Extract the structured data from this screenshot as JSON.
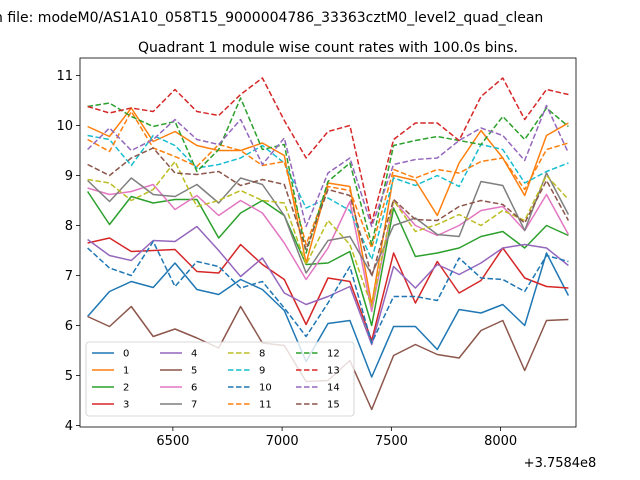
{
  "header": {
    "suptitle": "n file: modeM0/AS1A10_058T15_9000004786_33363cztM0_level2_quad_clean",
    "title": "Quadrant 1 module wise count rates with 100.0s bins."
  },
  "axis_offset_text": "+3.7584e8",
  "chart_data": {
    "type": "line",
    "title": "Quadrant 1 module wise count rates with 100.0s bins.",
    "xlabel": "",
    "ylabel": "",
    "x_offset": 375840000,
    "xlim": [
      6075,
      8345
    ],
    "ylim": [
      3.97,
      11.35
    ],
    "x_ticks": [
      6500,
      7000,
      7500,
      8000
    ],
    "y_ticks": [
      4,
      5,
      6,
      7,
      8,
      9,
      10,
      11
    ],
    "grid": false,
    "legend_position": "lower-left",
    "legend_columns": 4,
    "x": [
      6110,
      6210,
      6310,
      6410,
      6510,
      6610,
      6710,
      6810,
      6910,
      7010,
      7110,
      7210,
      7310,
      7410,
      7510,
      7610,
      7710,
      7810,
      7910,
      8010,
      8110,
      8210,
      8310
    ],
    "series": [
      {
        "name": "0",
        "color": "#1f77b4",
        "dash": "solid",
        "values": [
          6.18,
          6.68,
          6.88,
          6.76,
          7.25,
          6.72,
          6.62,
          6.92,
          6.72,
          6.3,
          5.28,
          6.04,
          6.1,
          4.97,
          5.98,
          5.98,
          5.52,
          6.32,
          6.25,
          6.42,
          6.0,
          7.45,
          6.6
        ]
      },
      {
        "name": "1",
        "color": "#ff7f0e",
        "dash": "solid",
        "values": [
          9.98,
          9.78,
          10.35,
          9.68,
          9.88,
          9.6,
          9.5,
          9.5,
          9.65,
          9.4,
          7.25,
          8.85,
          8.78,
          6.42,
          9.0,
          8.9,
          8.2,
          9.25,
          9.9,
          9.35,
          8.6,
          9.8,
          10.05
        ]
      },
      {
        "name": "2",
        "color": "#2ca02c",
        "dash": "solid",
        "values": [
          8.68,
          8.02,
          8.58,
          8.45,
          8.52,
          8.52,
          7.75,
          8.25,
          8.5,
          8.2,
          7.22,
          7.25,
          7.48,
          6.0,
          8.35,
          7.38,
          7.45,
          7.55,
          7.78,
          7.88,
          7.55,
          8.0,
          7.8
        ]
      },
      {
        "name": "3",
        "color": "#d62728",
        "dash": "solid",
        "values": [
          7.65,
          7.75,
          7.48,
          7.5,
          7.52,
          7.08,
          7.05,
          7.62,
          7.22,
          6.92,
          6.02,
          6.95,
          6.88,
          5.7,
          7.45,
          6.45,
          7.28,
          6.65,
          6.9,
          7.55,
          6.95,
          6.78,
          6.75
        ]
      },
      {
        "name": "4",
        "color": "#9467bd",
        "dash": "solid",
        "values": [
          7.72,
          7.4,
          7.3,
          7.7,
          7.68,
          7.98,
          7.5,
          6.98,
          7.35,
          6.65,
          6.42,
          6.58,
          6.78,
          5.62,
          7.18,
          6.75,
          7.22,
          7.02,
          7.25,
          7.55,
          7.62,
          7.55,
          7.2
        ]
      },
      {
        "name": "5",
        "color": "#8c564b",
        "dash": "solid",
        "values": [
          6.18,
          5.98,
          6.38,
          5.78,
          5.93,
          5.75,
          5.55,
          6.38,
          5.65,
          5.6,
          4.88,
          4.9,
          5.3,
          4.32,
          5.4,
          5.62,
          5.42,
          5.35,
          5.9,
          6.1,
          5.1,
          6.1,
          6.12
        ]
      },
      {
        "name": "6",
        "color": "#e377c2",
        "dash": "solid",
        "values": [
          8.75,
          8.62,
          8.68,
          8.82,
          8.32,
          8.6,
          8.2,
          8.5,
          8.25,
          7.65,
          6.92,
          7.55,
          8.48,
          6.28,
          8.5,
          8.0,
          7.8,
          8.0,
          8.3,
          8.38,
          7.9,
          8.62,
          7.82
        ]
      },
      {
        "name": "7",
        "color": "#7f7f7f",
        "dash": "solid",
        "values": [
          8.9,
          8.48,
          8.95,
          8.62,
          8.58,
          8.82,
          8.45,
          8.95,
          8.82,
          8.2,
          7.05,
          7.7,
          7.78,
          7.02,
          8.0,
          8.15,
          7.82,
          7.78,
          8.88,
          8.8,
          7.9,
          9.05,
          8.22
        ]
      },
      {
        "name": "8",
        "color": "#bcbd22",
        "dash": "dashed",
        "values": [
          8.92,
          8.85,
          8.5,
          8.72,
          9.28,
          8.38,
          8.5,
          8.7,
          8.5,
          8.45,
          7.22,
          8.1,
          7.62,
          6.38,
          8.5,
          7.88,
          8.02,
          8.22,
          8.0,
          8.3,
          8.1,
          9.0,
          8.52
        ]
      },
      {
        "name": "9",
        "color": "#17becf",
        "dash": "dashed",
        "values": [
          9.8,
          9.72,
          9.2,
          9.8,
          9.6,
          9.15,
          9.22,
          9.35,
          9.6,
          9.25,
          8.35,
          8.55,
          8.3,
          7.32,
          8.95,
          8.8,
          9.0,
          8.78,
          9.62,
          9.52,
          8.85,
          9.08,
          9.25
        ]
      },
      {
        "name": "10",
        "color": "#1f77b4",
        "dash": "dashed",
        "values": [
          7.55,
          7.15,
          7.0,
          7.68,
          6.78,
          7.28,
          7.18,
          6.75,
          6.88,
          6.35,
          5.78,
          6.45,
          7.18,
          5.65,
          6.58,
          6.58,
          6.5,
          7.35,
          6.95,
          6.92,
          6.68,
          7.4,
          7.28
        ]
      },
      {
        "name": "11",
        "color": "#ff7f0e",
        "dash": "dashed",
        "values": [
          9.72,
          9.48,
          10.28,
          9.55,
          9.38,
          9.18,
          9.62,
          9.5,
          9.2,
          9.28,
          7.62,
          8.78,
          8.7,
          7.55,
          9.12,
          8.95,
          9.12,
          9.05,
          9.28,
          9.35,
          8.72,
          9.52,
          9.65
        ]
      },
      {
        "name": "12",
        "color": "#2ca02c",
        "dash": "dashed",
        "values": [
          10.38,
          10.45,
          10.18,
          9.98,
          10.08,
          9.08,
          9.52,
          10.55,
          9.52,
          9.62,
          7.45,
          8.88,
          9.25,
          7.62,
          9.6,
          9.7,
          9.78,
          9.7,
          9.62,
          10.18,
          9.72,
          10.35,
          9.98
        ]
      },
      {
        "name": "13",
        "color": "#d62728",
        "dash": "dashed",
        "values": [
          10.38,
          10.25,
          10.35,
          10.28,
          10.72,
          10.28,
          10.2,
          10.62,
          10.95,
          10.1,
          9.35,
          9.88,
          10.0,
          8.05,
          9.72,
          10.05,
          10.05,
          9.7,
          10.58,
          10.95,
          10.12,
          10.72,
          10.62
        ]
      },
      {
        "name": "14",
        "color": "#9467bd",
        "dash": "dashed",
        "values": [
          9.52,
          9.95,
          9.5,
          9.72,
          10.12,
          9.72,
          9.62,
          10.12,
          9.22,
          9.75,
          7.98,
          9.05,
          9.35,
          7.98,
          9.22,
          9.32,
          9.35,
          9.7,
          9.95,
          9.8,
          9.3,
          10.4,
          9.45
        ]
      },
      {
        "name": "15",
        "color": "#8c564b",
        "dash": "dashed",
        "values": [
          9.22,
          9.0,
          9.35,
          9.55,
          9.05,
          9.02,
          9.08,
          8.8,
          8.92,
          8.82,
          7.52,
          8.72,
          8.6,
          6.98,
          8.52,
          8.12,
          8.1,
          8.38,
          8.5,
          8.42,
          8.05,
          8.9,
          8.1
        ]
      }
    ]
  }
}
